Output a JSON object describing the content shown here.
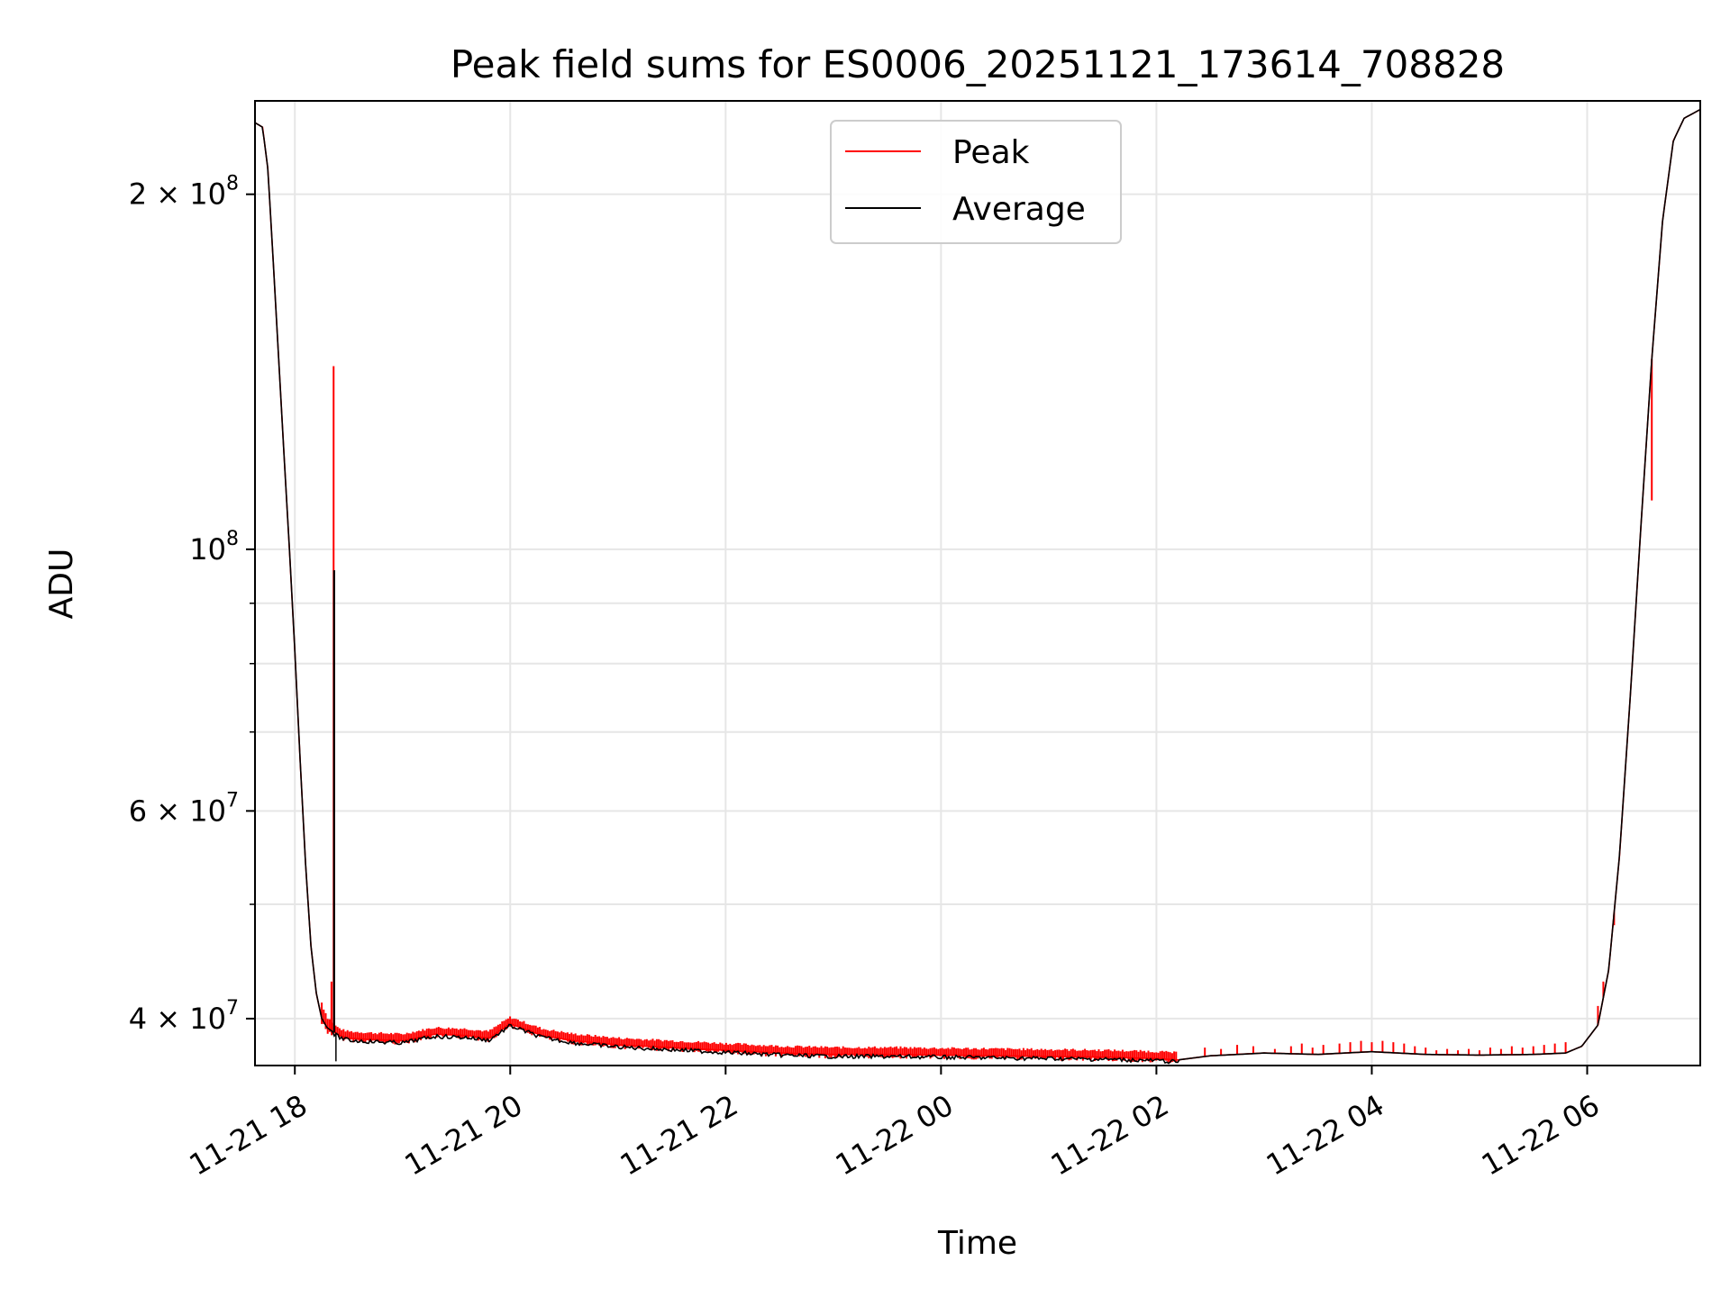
{
  "chart_data": {
    "type": "line",
    "title": "Peak field sums for ES0006_20251121_173614_708828",
    "xlabel": "Time",
    "ylabel": "ADU",
    "yscale": "log",
    "grid": true,
    "legend": {
      "position": "top-center",
      "entries": [
        "Peak",
        "Average"
      ]
    },
    "colors": {
      "Peak": "#ff0000",
      "Average": "#000000",
      "grid": "#e6e6e6"
    },
    "x_unit": "hours since 11-21 17:00",
    "xlim": [
      0.63,
      14.05
    ],
    "ylim": [
      36500000,
      240000000
    ],
    "x_ticks": [
      {
        "value": 1,
        "label": "11-21 18"
      },
      {
        "value": 3,
        "label": "11-21 20"
      },
      {
        "value": 5,
        "label": "11-21 22"
      },
      {
        "value": 7,
        "label": "11-22 00"
      },
      {
        "value": 9,
        "label": "11-22 02"
      },
      {
        "value": 11,
        "label": "11-22 04"
      },
      {
        "value": 13,
        "label": "11-22 06"
      }
    ],
    "y_major_ticks": [
      {
        "value": 40000000,
        "mantissa": "4",
        "exp": "7",
        "times": true
      },
      {
        "value": 60000000,
        "mantissa": "6",
        "exp": "7",
        "times": true
      },
      {
        "value": 100000000,
        "mantissa": "10",
        "exp": "8",
        "times": false
      },
      {
        "value": 200000000,
        "mantissa": "2",
        "exp": "8",
        "times": true
      }
    ],
    "y_minor_ticks": [
      50000000,
      70000000,
      80000000,
      90000000
    ],
    "series": [
      {
        "name": "Average",
        "x": [
          0.63,
          0.7,
          0.75,
          0.8,
          0.85,
          0.9,
          0.95,
          1.0,
          1.05,
          1.1,
          1.15,
          1.2,
          1.25,
          1.3,
          1.35,
          1.4,
          1.45,
          1.5,
          1.7,
          2.0,
          2.3,
          2.6,
          2.8,
          3.0,
          3.3,
          3.6,
          4.0,
          4.5,
          5.0,
          5.5,
          6.0,
          6.5,
          7.0,
          7.5,
          8.0,
          8.5,
          9.0,
          9.2,
          9.5,
          10.0,
          10.5,
          11.0,
          11.5,
          12.0,
          12.5,
          12.8,
          12.95,
          13.1,
          13.2,
          13.3,
          13.4,
          13.5,
          13.6,
          13.7,
          13.8,
          13.9,
          14.05
        ],
        "y": [
          230000000,
          228000000,
          210000000,
          175000000,
          145000000,
          120000000,
          100000000,
          82000000,
          66000000,
          54000000,
          46000000,
          42000000,
          40000000,
          39300000,
          39000000,
          38800000,
          38600000,
          38500000,
          38400000,
          38300000,
          38800000,
          38700000,
          38500000,
          39600000,
          38700000,
          38300000,
          38000000,
          37800000,
          37600000,
          37400000,
          37300000,
          37300000,
          37250000,
          37200000,
          37150000,
          37100000,
          37000000,
          36900000,
          37200000,
          37400000,
          37300000,
          37500000,
          37300000,
          37250000,
          37300000,
          37400000,
          37900000,
          39500000,
          44000000,
          55000000,
          75000000,
          105000000,
          145000000,
          190000000,
          222000000,
          232000000,
          236000000
        ]
      },
      {
        "name": "Peak",
        "envelope_x": [
          1.25,
          1.3,
          1.35,
          1.4,
          1.45,
          1.5,
          1.7,
          2.0,
          2.3,
          2.6,
          2.8,
          3.0,
          3.3,
          3.6,
          4.0,
          4.5,
          5.0,
          5.5,
          6.0,
          6.5,
          7.0,
          7.5,
          8.0,
          8.5,
          9.0,
          9.2
        ],
        "envelope_y": [
          41500000,
          40300000,
          39800000,
          39400000,
          39200000,
          39100000,
          39000000,
          38900000,
          39400000,
          39300000,
          39100000,
          40200000,
          39300000,
          38900000,
          38600000,
          38400000,
          38200000,
          38000000,
          37900000,
          37900000,
          37850000,
          37800000,
          37750000,
          37700000,
          37600000,
          37500000
        ],
        "spikes": [
          {
            "x": 1.36,
            "y": 143000000
          },
          {
            "x": 1.34,
            "y": 43000000
          },
          {
            "x": 9.45,
            "y": 37800000
          },
          {
            "x": 9.6,
            "y": 37700000
          },
          {
            "x": 9.75,
            "y": 38000000
          },
          {
            "x": 9.9,
            "y": 37900000
          },
          {
            "x": 10.1,
            "y": 37700000
          },
          {
            "x": 10.25,
            "y": 37900000
          },
          {
            "x": 10.35,
            "y": 38100000
          },
          {
            "x": 10.45,
            "y": 37800000
          },
          {
            "x": 10.55,
            "y": 38000000
          },
          {
            "x": 10.7,
            "y": 38100000
          },
          {
            "x": 10.8,
            "y": 38200000
          },
          {
            "x": 10.9,
            "y": 38300000
          },
          {
            "x": 11.0,
            "y": 38200000
          },
          {
            "x": 11.1,
            "y": 38300000
          },
          {
            "x": 11.2,
            "y": 38200000
          },
          {
            "x": 11.3,
            "y": 38100000
          },
          {
            "x": 11.4,
            "y": 37900000
          },
          {
            "x": 11.5,
            "y": 37800000
          },
          {
            "x": 11.6,
            "y": 37600000
          },
          {
            "x": 11.7,
            "y": 37700000
          },
          {
            "x": 11.8,
            "y": 37600000
          },
          {
            "x": 11.9,
            "y": 37700000
          },
          {
            "x": 12.0,
            "y": 37600000
          },
          {
            "x": 12.1,
            "y": 37800000
          },
          {
            "x": 12.2,
            "y": 37700000
          },
          {
            "x": 12.3,
            "y": 37900000
          },
          {
            "x": 12.4,
            "y": 37800000
          },
          {
            "x": 12.5,
            "y": 37900000
          },
          {
            "x": 12.6,
            "y": 38000000
          },
          {
            "x": 12.7,
            "y": 38100000
          },
          {
            "x": 12.8,
            "y": 38200000
          },
          {
            "x": 13.1,
            "y": 41000000
          },
          {
            "x": 13.15,
            "y": 43000000
          },
          {
            "x": 13.25,
            "y": 48000000
          },
          {
            "x": 13.6,
            "y": 110000000
          }
        ]
      }
    ]
  }
}
